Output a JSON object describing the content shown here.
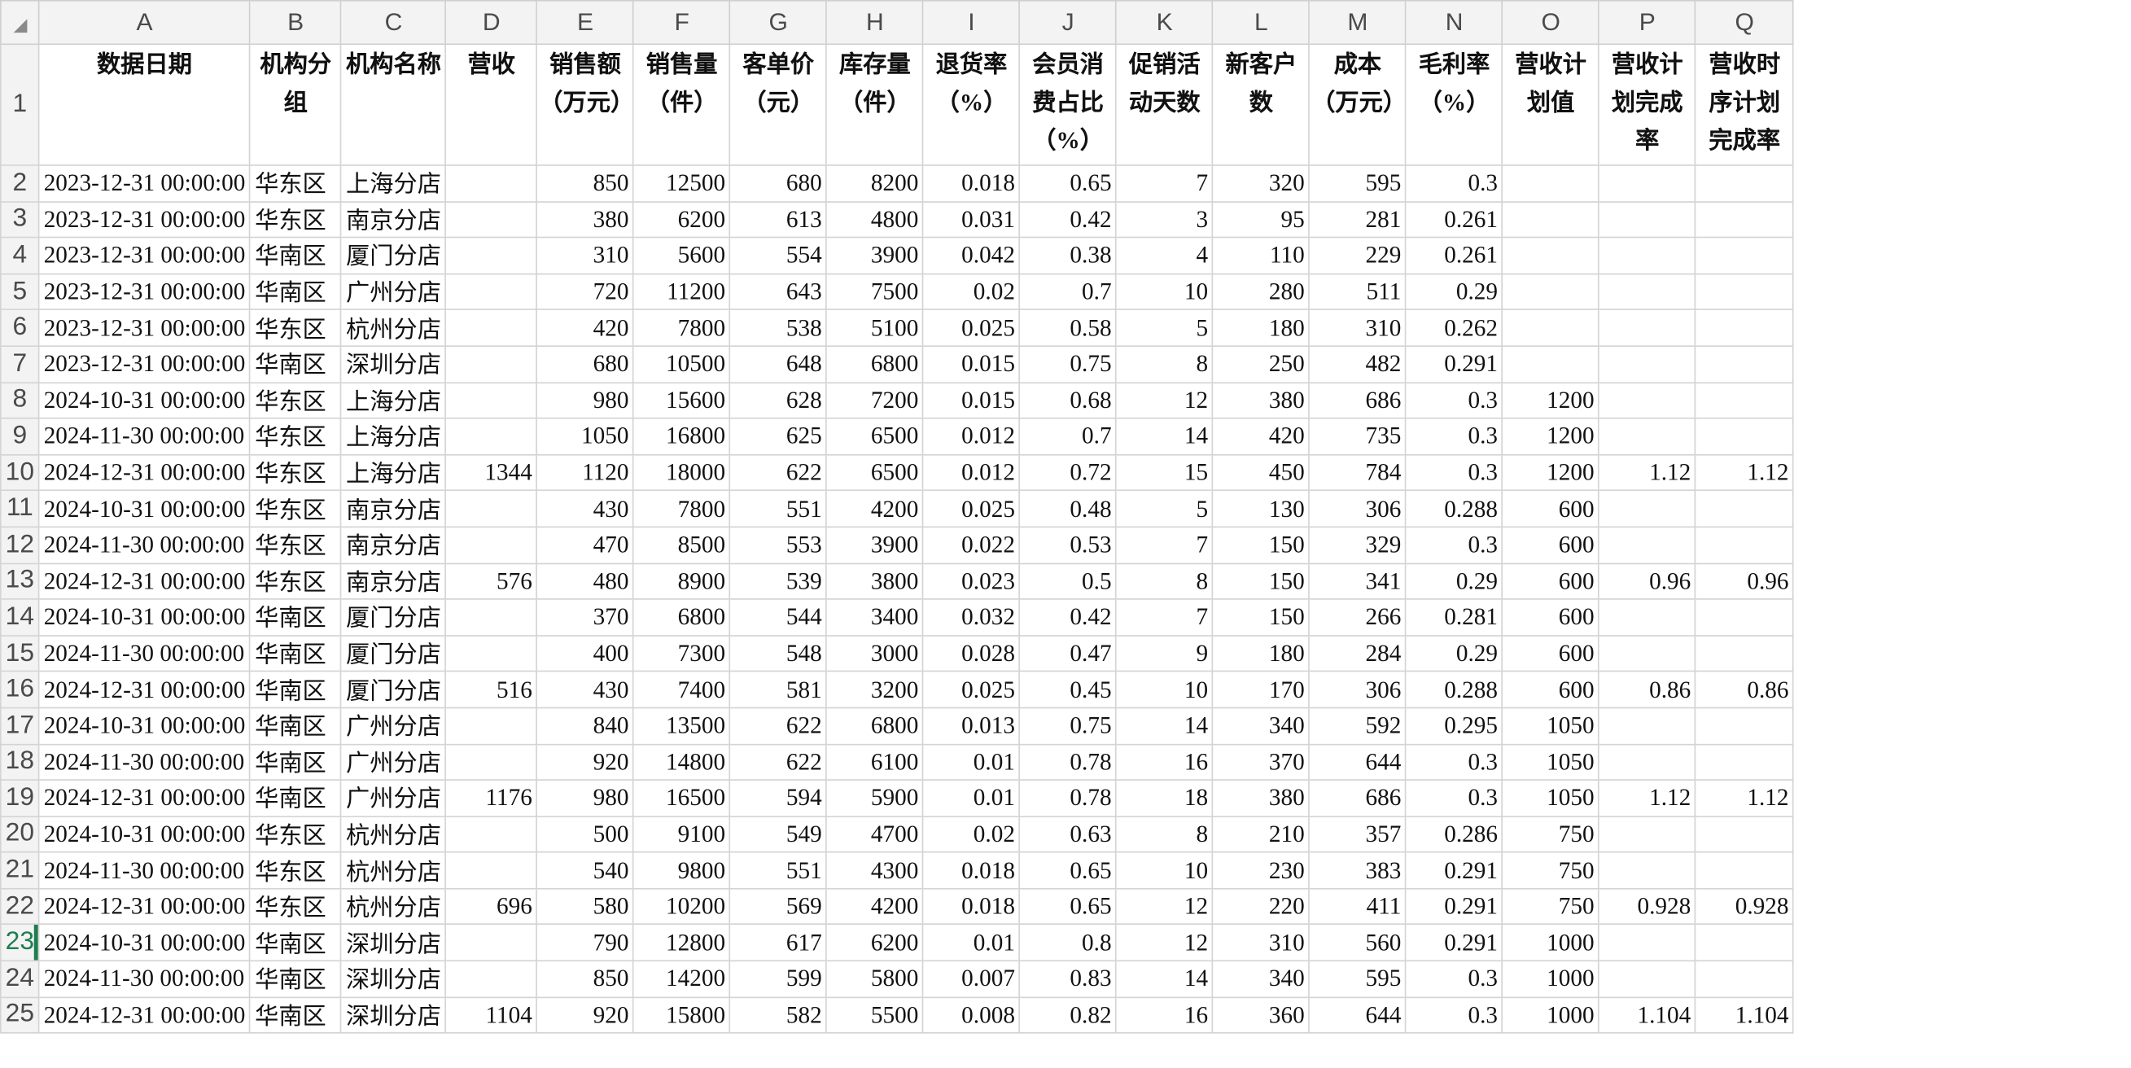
{
  "columns": [
    "A",
    "B",
    "C",
    "D",
    "E",
    "F",
    "G",
    "H",
    "I",
    "J",
    "K",
    "L",
    "M",
    "N",
    "O",
    "P",
    "Q"
  ],
  "headers": [
    "数据日期",
    "机构分组",
    "机构名称",
    "营收",
    "销售额（万元）",
    "销售量（件）",
    "客单价（元）",
    "库存量（件）",
    "退货率（%）",
    "会员消费占比（%）",
    "促销活动天数",
    "新客户数",
    "成本（万元）",
    "毛利率（%）",
    "营收计划值",
    "营收计划完成率",
    "营收时序计划完成率"
  ],
  "selected_row": 23,
  "rows": [
    {
      "n": "2",
      "c": [
        "2023-12-31 00:00:00",
        "华东区",
        "上海分店",
        "",
        "850",
        "12500",
        "680",
        "8200",
        "0.018",
        "0.65",
        "7",
        "320",
        "595",
        "0.3",
        "",
        "",
        ""
      ]
    },
    {
      "n": "3",
      "c": [
        "2023-12-31 00:00:00",
        "华东区",
        "南京分店",
        "",
        "380",
        "6200",
        "613",
        "4800",
        "0.031",
        "0.42",
        "3",
        "95",
        "281",
        "0.261",
        "",
        "",
        ""
      ]
    },
    {
      "n": "4",
      "c": [
        "2023-12-31 00:00:00",
        "华南区",
        "厦门分店",
        "",
        "310",
        "5600",
        "554",
        "3900",
        "0.042",
        "0.38",
        "4",
        "110",
        "229",
        "0.261",
        "",
        "",
        ""
      ]
    },
    {
      "n": "5",
      "c": [
        "2023-12-31 00:00:00",
        "华南区",
        "广州分店",
        "",
        "720",
        "11200",
        "643",
        "7500",
        "0.02",
        "0.7",
        "10",
        "280",
        "511",
        "0.29",
        "",
        "",
        ""
      ]
    },
    {
      "n": "6",
      "c": [
        "2023-12-31 00:00:00",
        "华东区",
        "杭州分店",
        "",
        "420",
        "7800",
        "538",
        "5100",
        "0.025",
        "0.58",
        "5",
        "180",
        "310",
        "0.262",
        "",
        "",
        ""
      ]
    },
    {
      "n": "7",
      "c": [
        "2023-12-31 00:00:00",
        "华南区",
        "深圳分店",
        "",
        "680",
        "10500",
        "648",
        "6800",
        "0.015",
        "0.75",
        "8",
        "250",
        "482",
        "0.291",
        "",
        "",
        ""
      ]
    },
    {
      "n": "8",
      "c": [
        "2024-10-31 00:00:00",
        "华东区",
        "上海分店",
        "",
        "980",
        "15600",
        "628",
        "7200",
        "0.015",
        "0.68",
        "12",
        "380",
        "686",
        "0.3",
        "1200",
        "",
        ""
      ]
    },
    {
      "n": "9",
      "c": [
        "2024-11-30 00:00:00",
        "华东区",
        "上海分店",
        "",
        "1050",
        "16800",
        "625",
        "6500",
        "0.012",
        "0.7",
        "14",
        "420",
        "735",
        "0.3",
        "1200",
        "",
        ""
      ]
    },
    {
      "n": "10",
      "c": [
        "2024-12-31 00:00:00",
        "华东区",
        "上海分店",
        "1344",
        "1120",
        "18000",
        "622",
        "6500",
        "0.012",
        "0.72",
        "15",
        "450",
        "784",
        "0.3",
        "1200",
        "1.12",
        "1.12"
      ]
    },
    {
      "n": "11",
      "c": [
        "2024-10-31 00:00:00",
        "华东区",
        "南京分店",
        "",
        "430",
        "7800",
        "551",
        "4200",
        "0.025",
        "0.48",
        "5",
        "130",
        "306",
        "0.288",
        "600",
        "",
        ""
      ]
    },
    {
      "n": "12",
      "c": [
        "2024-11-30 00:00:00",
        "华东区",
        "南京分店",
        "",
        "470",
        "8500",
        "553",
        "3900",
        "0.022",
        "0.53",
        "7",
        "150",
        "329",
        "0.3",
        "600",
        "",
        ""
      ]
    },
    {
      "n": "13",
      "c": [
        "2024-12-31 00:00:00",
        "华东区",
        "南京分店",
        "576",
        "480",
        "8900",
        "539",
        "3800",
        "0.023",
        "0.5",
        "8",
        "150",
        "341",
        "0.29",
        "600",
        "0.96",
        "0.96"
      ]
    },
    {
      "n": "14",
      "c": [
        "2024-10-31 00:00:00",
        "华南区",
        "厦门分店",
        "",
        "370",
        "6800",
        "544",
        "3400",
        "0.032",
        "0.42",
        "7",
        "150",
        "266",
        "0.281",
        "600",
        "",
        ""
      ]
    },
    {
      "n": "15",
      "c": [
        "2024-11-30 00:00:00",
        "华南区",
        "厦门分店",
        "",
        "400",
        "7300",
        "548",
        "3000",
        "0.028",
        "0.47",
        "9",
        "180",
        "284",
        "0.29",
        "600",
        "",
        ""
      ]
    },
    {
      "n": "16",
      "c": [
        "2024-12-31 00:00:00",
        "华南区",
        "厦门分店",
        "516",
        "430",
        "7400",
        "581",
        "3200",
        "0.025",
        "0.45",
        "10",
        "170",
        "306",
        "0.288",
        "600",
        "0.86",
        "0.86"
      ]
    },
    {
      "n": "17",
      "c": [
        "2024-10-31 00:00:00",
        "华南区",
        "广州分店",
        "",
        "840",
        "13500",
        "622",
        "6800",
        "0.013",
        "0.75",
        "14",
        "340",
        "592",
        "0.295",
        "1050",
        "",
        ""
      ]
    },
    {
      "n": "18",
      "c": [
        "2024-11-30 00:00:00",
        "华南区",
        "广州分店",
        "",
        "920",
        "14800",
        "622",
        "6100",
        "0.01",
        "0.78",
        "16",
        "370",
        "644",
        "0.3",
        "1050",
        "",
        ""
      ]
    },
    {
      "n": "19",
      "c": [
        "2024-12-31 00:00:00",
        "华南区",
        "广州分店",
        "1176",
        "980",
        "16500",
        "594",
        "5900",
        "0.01",
        "0.78",
        "18",
        "380",
        "686",
        "0.3",
        "1050",
        "1.12",
        "1.12"
      ]
    },
    {
      "n": "20",
      "c": [
        "2024-10-31 00:00:00",
        "华东区",
        "杭州分店",
        "",
        "500",
        "9100",
        "549",
        "4700",
        "0.02",
        "0.63",
        "8",
        "210",
        "357",
        "0.286",
        "750",
        "",
        ""
      ]
    },
    {
      "n": "21",
      "c": [
        "2024-11-30 00:00:00",
        "华东区",
        "杭州分店",
        "",
        "540",
        "9800",
        "551",
        "4300",
        "0.018",
        "0.65",
        "10",
        "230",
        "383",
        "0.291",
        "750",
        "",
        ""
      ]
    },
    {
      "n": "22",
      "c": [
        "2024-12-31 00:00:00",
        "华东区",
        "杭州分店",
        "696",
        "580",
        "10200",
        "569",
        "4200",
        "0.018",
        "0.65",
        "12",
        "220",
        "411",
        "0.291",
        "750",
        "0.928",
        "0.928"
      ]
    },
    {
      "n": "23",
      "c": [
        "2024-10-31 00:00:00",
        "华南区",
        "深圳分店",
        "",
        "790",
        "12800",
        "617",
        "6200",
        "0.01",
        "0.8",
        "12",
        "310",
        "560",
        "0.291",
        "1000",
        "",
        ""
      ]
    },
    {
      "n": "24",
      "c": [
        "2024-11-30 00:00:00",
        "华南区",
        "深圳分店",
        "",
        "850",
        "14200",
        "599",
        "5800",
        "0.007",
        "0.83",
        "14",
        "340",
        "595",
        "0.3",
        "1000",
        "",
        ""
      ]
    },
    {
      "n": "25",
      "c": [
        "2024-12-31 00:00:00",
        "华南区",
        "深圳分店",
        "1104",
        "920",
        "15800",
        "582",
        "5500",
        "0.008",
        "0.82",
        "16",
        "360",
        "644",
        "0.3",
        "1000",
        "1.104",
        "1.104"
      ]
    }
  ]
}
